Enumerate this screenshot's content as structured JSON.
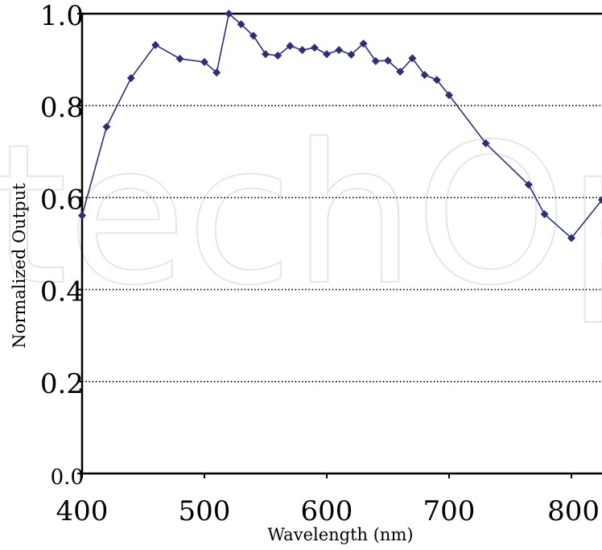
{
  "chart_data": {
    "type": "line",
    "xlabel": "Wavelength (nm)",
    "ylabel": "Normalized Output",
    "xlim": [
      400,
      825
    ],
    "ylim": [
      0.0,
      1.0
    ],
    "x_ticks": [
      {
        "value": 400,
        "label": "400"
      },
      {
        "value": 500,
        "label": "500"
      },
      {
        "value": 600,
        "label": "600"
      },
      {
        "value": 700,
        "label": "700"
      },
      {
        "value": 800,
        "label": "800"
      }
    ],
    "y_ticks": [
      {
        "value": 0.0,
        "label": "0.0"
      },
      {
        "value": 0.2,
        "label": "0.2"
      },
      {
        "value": 0.4,
        "label": "0.4"
      },
      {
        "value": 0.6,
        "label": "0.6"
      },
      {
        "value": 0.8,
        "label": "0.8"
      },
      {
        "value": 1.0,
        "label": "1.0"
      }
    ],
    "grid": {
      "horizontal": true,
      "vertical": false,
      "style": "dotted"
    },
    "legend": "none",
    "watermark": "techOpen",
    "series": [
      {
        "color": "#2b2f7a",
        "marker": "diamond",
        "points": [
          {
            "x": 400,
            "y": 0.561
          },
          {
            "x": 420,
            "y": 0.754
          },
          {
            "x": 440,
            "y": 0.86
          },
          {
            "x": 460,
            "y": 0.932
          },
          {
            "x": 480,
            "y": 0.902
          },
          {
            "x": 500,
            "y": 0.895
          },
          {
            "x": 510,
            "y": 0.872
          },
          {
            "x": 520,
            "y": 1.0
          },
          {
            "x": 530,
            "y": 0.977
          },
          {
            "x": 540,
            "y": 0.952
          },
          {
            "x": 550,
            "y": 0.912
          },
          {
            "x": 560,
            "y": 0.909
          },
          {
            "x": 570,
            "y": 0.93
          },
          {
            "x": 580,
            "y": 0.921
          },
          {
            "x": 590,
            "y": 0.926
          },
          {
            "x": 600,
            "y": 0.912
          },
          {
            "x": 610,
            "y": 0.921
          },
          {
            "x": 620,
            "y": 0.911
          },
          {
            "x": 630,
            "y": 0.935
          },
          {
            "x": 640,
            "y": 0.897
          },
          {
            "x": 650,
            "y": 0.898
          },
          {
            "x": 660,
            "y": 0.874
          },
          {
            "x": 670,
            "y": 0.903
          },
          {
            "x": 680,
            "y": 0.867
          },
          {
            "x": 690,
            "y": 0.856
          },
          {
            "x": 700,
            "y": 0.823
          },
          {
            "x": 730,
            "y": 0.718
          },
          {
            "x": 765,
            "y": 0.628
          },
          {
            "x": 778,
            "y": 0.564
          },
          {
            "x": 800,
            "y": 0.512
          },
          {
            "x": 825,
            "y": 0.595
          }
        ]
      }
    ]
  }
}
